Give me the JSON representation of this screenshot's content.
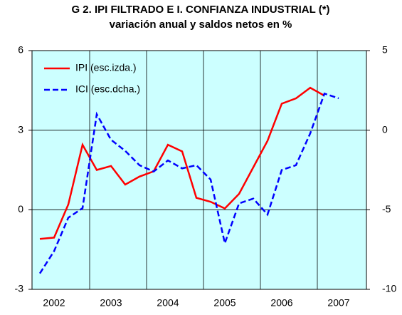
{
  "chart_data": {
    "type": "line",
    "title": "G 2. IPI FILTRADO E I. CONFIANZA INDUSTRIAL (*)",
    "subtitle": "variación anual y saldos netos en %",
    "categories": [
      null,
      "2002",
      null,
      null,
      null,
      "2003",
      null,
      null,
      null,
      "2004",
      null,
      null,
      null,
      "2005",
      null,
      null,
      null,
      "2006",
      null,
      null,
      null,
      "2007"
    ],
    "series": [
      {
        "name": "IPI (esc.izda.)",
        "color": "#ff0000",
        "axis": "y",
        "values": [
          -1.1,
          -1.05,
          0.2,
          2.45,
          1.5,
          1.65,
          0.95,
          1.25,
          1.45,
          2.45,
          2.2,
          0.45,
          0.3,
          0.05,
          0.6,
          1.6,
          2.6,
          4.0,
          4.2,
          4.6,
          4.3,
          null
        ]
      },
      {
        "name": "ICI (esc.dcha.)",
        "color": "#0000ff",
        "axis": "y2",
        "dashed": true,
        "values": [
          -9,
          -7.6,
          -5.5,
          -4.9,
          1.0,
          -0.6,
          -1.3,
          -2.2,
          -2.6,
          -1.9,
          -2.4,
          -2.2,
          -3.1,
          -7.1,
          -4.6,
          -4.3,
          -5.3,
          -2.5,
          -2.2,
          -0.2,
          2.3,
          2.0
        ]
      }
    ],
    "ylim": [
      -3,
      6
    ],
    "yticks": [
      -3,
      0,
      3,
      6
    ],
    "y2lim": [
      -10,
      5
    ],
    "y2ticks": [
      -10,
      -5,
      0,
      5
    ],
    "grid": true,
    "legend": "top-left",
    "background": "#ccffff"
  }
}
